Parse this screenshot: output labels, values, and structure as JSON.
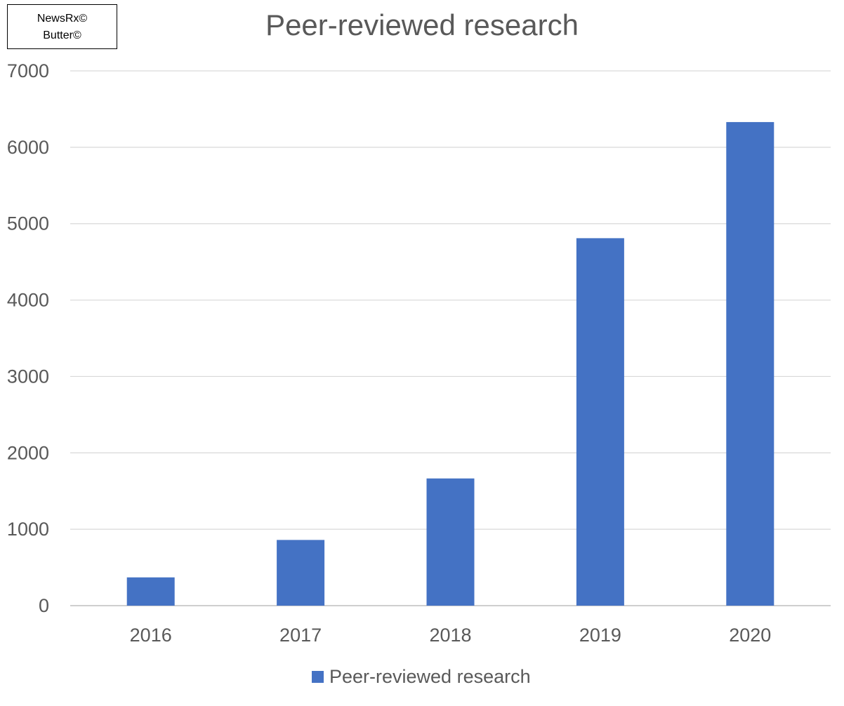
{
  "source_box": {
    "line1": "NewsRx©",
    "line2": "Butter©"
  },
  "chart_data": {
    "type": "bar",
    "title": "Peer-reviewed research",
    "categories": [
      "2016",
      "2017",
      "2018",
      "2019",
      "2020"
    ],
    "series": [
      {
        "name": "Peer-reviewed research",
        "values": [
          370,
          860,
          1665,
          4810,
          6330
        ],
        "color": "#4472C4"
      }
    ],
    "ylim": [
      0,
      7000
    ],
    "yticks": [
      0,
      1000,
      2000,
      3000,
      4000,
      5000,
      6000,
      7000
    ],
    "xlabel": "",
    "ylabel": "",
    "grid": true,
    "legend": "bottom-center"
  }
}
